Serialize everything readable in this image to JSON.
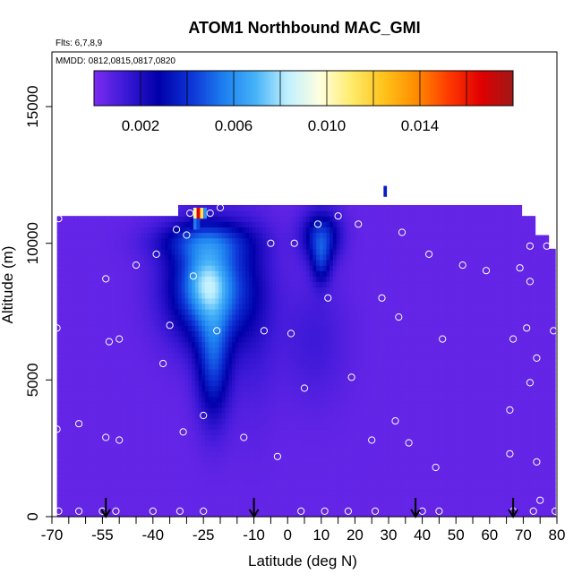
{
  "chart_data": {
    "type": "heatmap",
    "title": "ATOM1 Northbound MAC_GMI",
    "subtitle_flights": "Flts: 6,7,8,9",
    "subtitle_dates": "MMDD: 0812,0815,0817,0820",
    "xlabel": "Latitude (deg N)",
    "ylabel": "Altitude (m)",
    "xlim": [
      -70,
      80
    ],
    "ylim": [
      0,
      17000
    ],
    "x_ticks": [
      -70,
      -55,
      -40,
      -25,
      -10,
      0,
      10,
      20,
      30,
      40,
      50,
      60,
      70,
      80
    ],
    "x_tick_labels": [
      "-70",
      "-55",
      "-40",
      "-25",
      "-10",
      "0",
      "10",
      "20",
      "30",
      "40",
      "50",
      "60",
      "70",
      "80"
    ],
    "y_ticks": [
      0,
      5000,
      10000,
      15000
    ],
    "y_tick_labels": [
      "0",
      "5000",
      "10000",
      "15000"
    ],
    "colorbar": {
      "range": [
        0,
        0.018
      ],
      "tick_values": [
        0.002,
        0.006,
        0.01,
        0.014
      ],
      "tick_labels": [
        "0.002",
        "0.006",
        "0.010",
        "0.014"
      ],
      "colors": [
        "#7b2cf0",
        "#3a18d6",
        "#0000aa",
        "#0d33d6",
        "#1c7ef0",
        "#45b2f8",
        "#bff0ff",
        "#ffffe0",
        "#ffeb6a",
        "#ffc21a",
        "#ff8c00",
        "#ff3a00",
        "#e00000",
        "#a01818"
      ]
    },
    "background_value": 0.0005,
    "data_extent": {
      "lat_range": [
        -68.5,
        79.5
      ],
      "alt_top": [
        {
          "lat": -68.5,
          "alt": 11000
        },
        {
          "lat": -32,
          "alt": 11000
        },
        {
          "lat": -32,
          "alt": 11400
        },
        {
          "lat": 70,
          "alt": 11400
        },
        {
          "lat": 70,
          "alt": 11000
        },
        {
          "lat": 74,
          "alt": 11000
        },
        {
          "lat": 74,
          "alt": 10300
        },
        {
          "lat": 78,
          "alt": 10300
        },
        {
          "lat": 78,
          "alt": 9800
        },
        {
          "lat": 79.5,
          "alt": 9800
        }
      ]
    },
    "plumes": [
      {
        "name": "southern-tropical-plume",
        "lat": -23,
        "alt": 8400,
        "lat_sd": 8.5,
        "alt_sd": 1400,
        "value": 0.0055
      },
      {
        "name": "southern-tropical-core",
        "lat": -24,
        "alt": 8600,
        "lat_sd": 4,
        "alt_sd": 700,
        "value": 0.002
      },
      {
        "name": "lower-trough",
        "lat": -22,
        "alt": 5600,
        "lat_sd": 3.5,
        "alt_sd": 1500,
        "value": 0.0035
      },
      {
        "name": "upper-ridge",
        "lat": -25,
        "alt": 10100,
        "lat_sd": 10,
        "alt_sd": 500,
        "value": 0.0025
      },
      {
        "name": "midlatitude-wedge",
        "lat": 10,
        "alt": 10300,
        "lat_sd": 4,
        "alt_sd": 650,
        "value": 0.0035
      },
      {
        "name": "midlatitude-wedge-lower",
        "lat": 10,
        "alt": 9300,
        "lat_sd": 2,
        "alt_sd": 600,
        "value": 0.0025
      },
      {
        "name": "weak-band",
        "lat": -10,
        "alt": 7200,
        "lat_sd": 5,
        "alt_sd": 2500,
        "value": 0.0008
      },
      {
        "name": "weak-band-2",
        "lat": 8,
        "alt": 6500,
        "lat_sd": 7,
        "alt_sd": 1600,
        "value": 0.0008
      }
    ],
    "hotspot_cells": [
      {
        "lat": -27.5,
        "alt": 11100,
        "value": 0.0105
      },
      {
        "lat": -26.5,
        "alt": 11100,
        "value": 0.0165
      },
      {
        "lat": -25.5,
        "alt": 11100,
        "value": 0.0115
      },
      {
        "lat": -24.5,
        "alt": 11100,
        "value": 0.006
      },
      {
        "lat": -27.5,
        "alt": 10700,
        "value": 0.0055
      },
      {
        "lat": -26.5,
        "alt": 10700,
        "value": 0.0045
      },
      {
        "lat": -28.5,
        "alt": 10700,
        "value": 0.0025
      },
      {
        "lat": 29,
        "alt": 11900,
        "value": 0.0035
      }
    ],
    "observation_points": [
      {
        "lat": -68,
        "alt": 10900
      },
      {
        "lat": -68.5,
        "alt": 6900
      },
      {
        "lat": -68.5,
        "alt": 3200
      },
      {
        "lat": -68,
        "alt": 200
      },
      {
        "lat": -62,
        "alt": 200
      },
      {
        "lat": -62,
        "alt": 3400
      },
      {
        "lat": -55,
        "alt": 200
      },
      {
        "lat": -51,
        "alt": 200
      },
      {
        "lat": -40,
        "alt": 200
      },
      {
        "lat": -32,
        "alt": 200
      },
      {
        "lat": -25,
        "alt": 200
      },
      {
        "lat": -54,
        "alt": 8700
      },
      {
        "lat": -53,
        "alt": 6400
      },
      {
        "lat": -50,
        "alt": 6500
      },
      {
        "lat": -54,
        "alt": 2900
      },
      {
        "lat": -50,
        "alt": 2800
      },
      {
        "lat": -45,
        "alt": 9200
      },
      {
        "lat": -39,
        "alt": 9600
      },
      {
        "lat": -37,
        "alt": 5600
      },
      {
        "lat": -35,
        "alt": 7000
      },
      {
        "lat": -33,
        "alt": 10500
      },
      {
        "lat": -30,
        "alt": 10300
      },
      {
        "lat": -28,
        "alt": 8800
      },
      {
        "lat": -29,
        "alt": 11100
      },
      {
        "lat": -23,
        "alt": 11100
      },
      {
        "lat": -20,
        "alt": 11300
      },
      {
        "lat": -21,
        "alt": 6800
      },
      {
        "lat": -31,
        "alt": 3100
      },
      {
        "lat": -25,
        "alt": 3700
      },
      {
        "lat": -13,
        "alt": 2900
      },
      {
        "lat": -7,
        "alt": 6800
      },
      {
        "lat": -5,
        "alt": 10000
      },
      {
        "lat": -3,
        "alt": 2200
      },
      {
        "lat": 1,
        "alt": 6700
      },
      {
        "lat": 2,
        "alt": 10000
      },
      {
        "lat": 4,
        "alt": 200
      },
      {
        "lat": 9,
        "alt": 10700
      },
      {
        "lat": 11,
        "alt": 200
      },
      {
        "lat": 12,
        "alt": 8000
      },
      {
        "lat": 15,
        "alt": 11000
      },
      {
        "lat": 18,
        "alt": 200
      },
      {
        "lat": 19,
        "alt": 5100
      },
      {
        "lat": 21,
        "alt": 10700
      },
      {
        "lat": 25,
        "alt": 2800
      },
      {
        "lat": 26,
        "alt": 200
      },
      {
        "lat": 28,
        "alt": 8000
      },
      {
        "lat": 32,
        "alt": 3500
      },
      {
        "lat": 33,
        "alt": 7300
      },
      {
        "lat": 34,
        "alt": 10400
      },
      {
        "lat": 36,
        "alt": 2700
      },
      {
        "lat": 40,
        "alt": 200
      },
      {
        "lat": 42,
        "alt": 9600
      },
      {
        "lat": 44,
        "alt": 1800
      },
      {
        "lat": 45,
        "alt": 200
      },
      {
        "lat": 46,
        "alt": 6500
      },
      {
        "lat": 52,
        "alt": 9200
      },
      {
        "lat": 59,
        "alt": 9000
      },
      {
        "lat": 66,
        "alt": 3900
      },
      {
        "lat": 66,
        "alt": 2300
      },
      {
        "lat": 67,
        "alt": 6500
      },
      {
        "lat": 67,
        "alt": 200
      },
      {
        "lat": 69,
        "alt": 9100
      },
      {
        "lat": 71,
        "alt": 11200
      },
      {
        "lat": 71,
        "alt": 6900
      },
      {
        "lat": 72,
        "alt": 8600
      },
      {
        "lat": 72,
        "alt": 4900
      },
      {
        "lat": 72,
        "alt": 9900
      },
      {
        "lat": 73,
        "alt": 200
      },
      {
        "lat": 74,
        "alt": 5800
      },
      {
        "lat": 74,
        "alt": 2000
      },
      {
        "lat": 75,
        "alt": 600
      },
      {
        "lat": 77,
        "alt": 9900
      },
      {
        "lat": 79,
        "alt": 6800
      },
      {
        "lat": 79.5,
        "alt": 200
      },
      {
        "lat": 5,
        "alt": 4700
      }
    ],
    "flight_markers_lat": [
      -54,
      -10,
      38,
      67
    ]
  }
}
